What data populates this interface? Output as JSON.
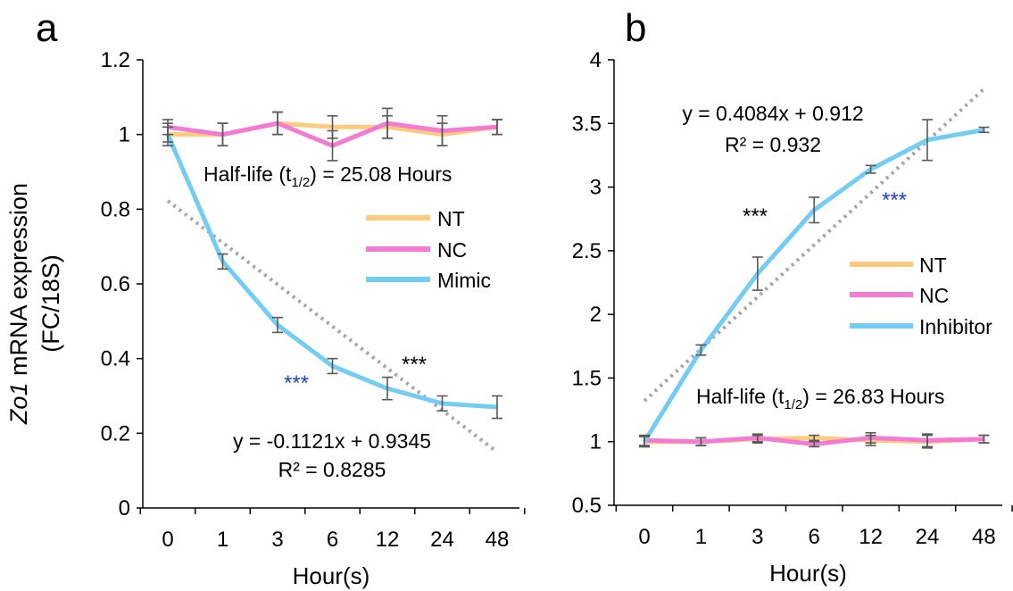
{
  "figure": {
    "ylabel_italic": "Zo1",
    "ylabel_rest": " mRNA expression",
    "ylabel_line2": "(FC/18S)"
  },
  "colors": {
    "NT": "#FDCB7E",
    "NC": "#F47BD3",
    "Mimic": "#73CDF2",
    "Inhibitor": "#73CDF2",
    "trend": "#A6A6A6",
    "errorbar": "#595959",
    "star_black": "#000000",
    "star_blue": "#1F3FD1"
  },
  "chart_data": [
    {
      "type": "line",
      "panel_label": "a",
      "categories": [
        "0",
        "1",
        "3",
        "6",
        "12",
        "24",
        "48"
      ],
      "xlabel": "Hour(s)",
      "ylim": [
        0,
        1.2
      ],
      "yticks": [
        "0",
        "0.2",
        "0.4",
        "0.6",
        "0.8",
        "1",
        "1.2"
      ],
      "series": [
        {
          "name": "NT",
          "values": [
            1.0,
            1.0,
            1.03,
            1.02,
            1.02,
            1.0,
            1.02
          ],
          "errors": [
            0.03,
            0.03,
            0.03,
            0.03,
            0.03,
            0.03,
            0.02
          ]
        },
        {
          "name": "NC",
          "values": [
            1.02,
            1.0,
            1.03,
            0.97,
            1.03,
            1.01,
            1.02
          ],
          "errors": [
            0.02,
            0.03,
            0.03,
            0.04,
            0.04,
            0.04,
            0.02
          ]
        },
        {
          "name": "Mimic",
          "values": [
            1.0,
            0.66,
            0.49,
            0.38,
            0.32,
            0.28,
            0.27
          ],
          "errors": [
            0.02,
            0.02,
            0.02,
            0.02,
            0.03,
            0.02,
            0.03
          ]
        }
      ],
      "trendline": {
        "equation": "y = -0.1121x + 0.9345",
        "r2": "R² = 0.8285",
        "slope": -0.1121,
        "intercept": 0.9345
      },
      "half_life_prefix": "Half-life (t",
      "half_life_sub": "1/2",
      "half_life_suffix": ") = 25.08 Hours",
      "significance": [
        {
          "text": "***",
          "color": "blue"
        },
        {
          "text": "***",
          "color": "black"
        }
      ]
    },
    {
      "type": "line",
      "panel_label": "b",
      "categories": [
        "0",
        "1",
        "3",
        "6",
        "12",
        "24",
        "48"
      ],
      "xlabel": "Hour(s)",
      "ylim": [
        0.5,
        4
      ],
      "yticks": [
        "0.5",
        "1",
        "1.5",
        "2",
        "2.5",
        "3",
        "3.5",
        "4"
      ],
      "series": [
        {
          "name": "NT",
          "values": [
            1.0,
            1.0,
            1.02,
            1.03,
            1.01,
            1.0,
            1.02
          ],
          "errors": [
            0.04,
            0.03,
            0.03,
            0.02,
            0.04,
            0.05,
            0.03
          ]
        },
        {
          "name": "NC",
          "values": [
            1.01,
            1.0,
            1.03,
            0.98,
            1.03,
            1.01,
            1.02
          ],
          "errors": [
            0.04,
            0.03,
            0.03,
            0.02,
            0.04,
            0.05,
            0.03
          ]
        },
        {
          "name": "Inhibitor",
          "values": [
            1.0,
            1.72,
            2.32,
            2.82,
            3.14,
            3.37,
            3.45
          ],
          "errors": [
            0.04,
            0.04,
            0.13,
            0.1,
            0.03,
            0.16,
            0.02
          ]
        }
      ],
      "trendline": {
        "equation": "y = 0.4084x + 0.912",
        "r2": "R² = 0.932",
        "slope": 0.4084,
        "intercept": 0.912
      },
      "half_life_prefix": "Half-life (t",
      "half_life_sub": "1/2",
      "half_life_suffix": ") = 26.83 Hours",
      "significance": [
        {
          "text": "***",
          "color": "black"
        },
        {
          "text": "***",
          "color": "blue"
        }
      ]
    }
  ]
}
